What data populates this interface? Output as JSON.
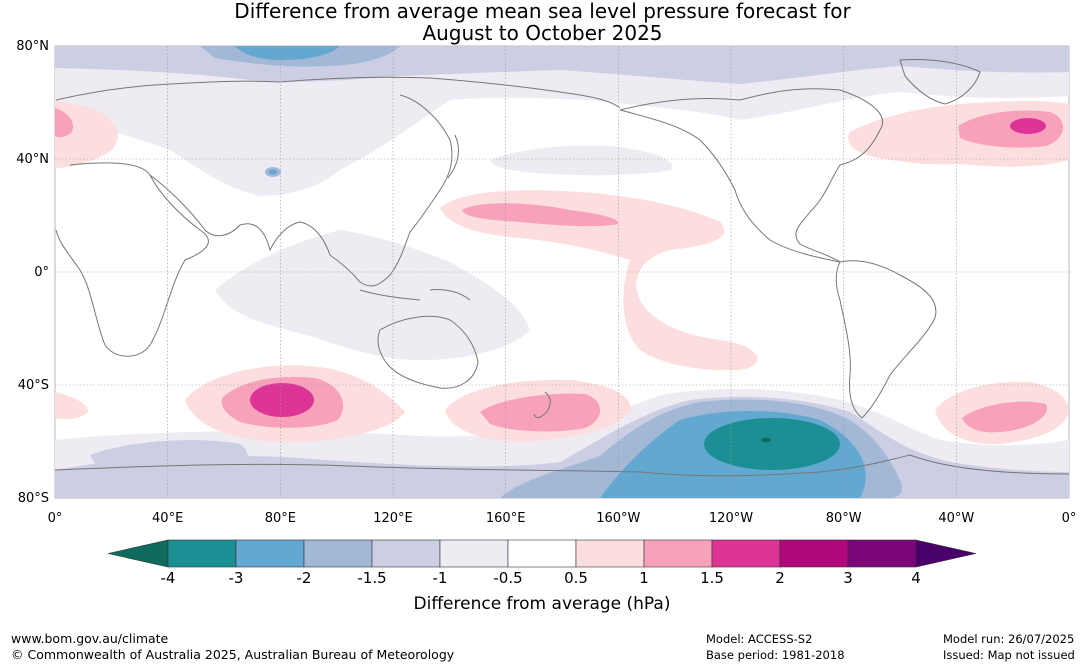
{
  "title": {
    "line1": "Difference from average mean sea level pressure forecast for",
    "line2": "August to October 2025"
  },
  "map": {
    "lat_labels": [
      "80°N",
      "40°N",
      "0°",
      "40°S",
      "80°S"
    ],
    "lon_labels": [
      "0°",
      "40°E",
      "80°E",
      "120°E",
      "160°E",
      "160°W",
      "120°W",
      "80°W",
      "40°W",
      "0°"
    ],
    "gridlines": true
  },
  "colorbar": {
    "title": "Difference from average (hPa)",
    "tick_labels": [
      "-4",
      "-3",
      "-2",
      "-1.5",
      "-1",
      "-0.5",
      "0.5",
      "1",
      "1.5",
      "2",
      "3",
      "4"
    ],
    "bins": [
      {
        "range": "< -4",
        "color": "#0e6b5e"
      },
      {
        "range": "-4 to -3",
        "color": "#1c8f95"
      },
      {
        "range": "-3 to -2",
        "color": "#62a8d0"
      },
      {
        "range": "-2 to -1.5",
        "color": "#a3b8d6"
      },
      {
        "range": "-1.5 to -1",
        "color": "#ccceE4"
      },
      {
        "range": "-1 to -0.5",
        "color": "#efebf3"
      },
      {
        "range": "-0.5 to 0.5",
        "color": "#ffffff"
      },
      {
        "range": "0.5 to 1",
        "color": "#fcdede"
      },
      {
        "range": "1 to 1.5",
        "color": "#f7a1ba"
      },
      {
        "range": "1.5 to 2",
        "color": "#dd3597"
      },
      {
        "range": "2 to 3",
        "color": "#b0077c"
      },
      {
        "range": "3 to 4",
        "color": "#7a0478"
      },
      {
        "range": "> 4",
        "color": "#4a0069"
      }
    ]
  },
  "footer": {
    "url": "www.bom.gov.au/climate",
    "copyright": "© Commonwealth of Australia 2025, Australian Bureau of Meteorology",
    "model": "Model: ACCESS-S2",
    "base_period": "Base period: 1981-2018",
    "model_run": "Model run: 26/07/2025",
    "issued": "Issued: Map not issued"
  }
}
